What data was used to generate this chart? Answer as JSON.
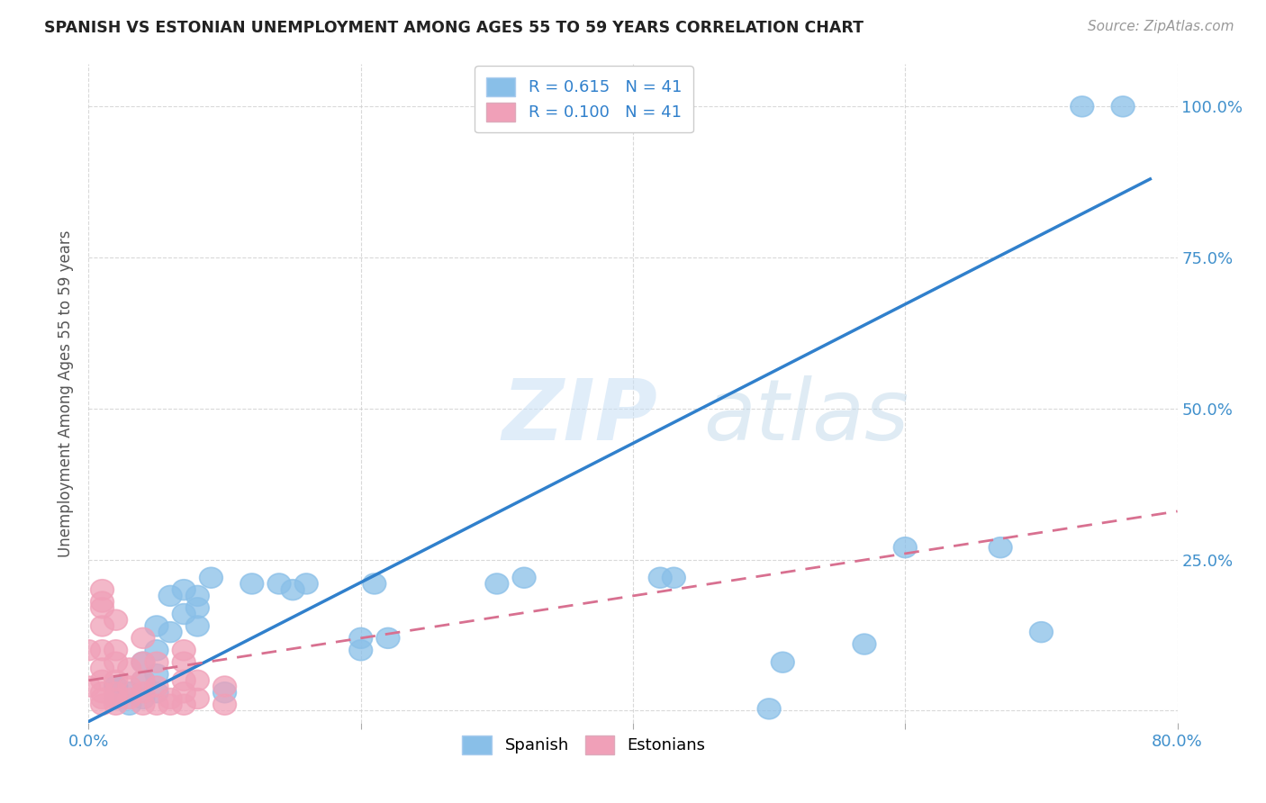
{
  "title": "SPANISH VS ESTONIAN UNEMPLOYMENT AMONG AGES 55 TO 59 YEARS CORRELATION CHART",
  "source": "Source: ZipAtlas.com",
  "ylabel": "Unemployment Among Ages 55 to 59 years",
  "xlim": [
    0.0,
    0.8
  ],
  "ylim": [
    -0.02,
    1.07
  ],
  "x_ticks": [
    0.0,
    0.2,
    0.4,
    0.6,
    0.8
  ],
  "y_ticks": [
    0.0,
    0.25,
    0.5,
    0.75,
    1.0
  ],
  "spanish_R": 0.615,
  "estonian_R": 0.1,
  "N": 41,
  "spanish_color": "#89bfe8",
  "estonian_color": "#f0a0b8",
  "spanish_line_color": "#3080cc",
  "estonian_line_color": "#d87090",
  "watermark_zip": "ZIP",
  "watermark_atlas": "atlas",
  "background_color": "#ffffff",
  "grid_color": "#d0d0d0",
  "spanish_x": [
    0.73,
    0.76,
    0.02,
    0.08,
    0.02,
    0.05,
    0.06,
    0.07,
    0.08,
    0.09,
    0.1,
    0.12,
    0.14,
    0.15,
    0.16,
    0.2,
    0.2,
    0.21,
    0.22,
    0.3,
    0.32,
    0.42,
    0.43,
    0.5,
    0.51,
    0.57,
    0.6,
    0.67,
    0.7,
    0.03,
    0.04,
    0.04,
    0.05,
    0.05,
    0.06,
    0.07,
    0.02,
    0.03,
    0.04,
    0.05,
    0.08
  ],
  "spanish_y": [
    1.0,
    1.0,
    0.04,
    0.19,
    0.02,
    0.03,
    0.13,
    0.16,
    0.14,
    0.22,
    0.03,
    0.21,
    0.21,
    0.2,
    0.21,
    0.1,
    0.12,
    0.21,
    0.12,
    0.21,
    0.22,
    0.22,
    0.22,
    0.003,
    0.08,
    0.11,
    0.27,
    0.27,
    0.13,
    0.01,
    0.02,
    0.05,
    0.06,
    0.1,
    0.19,
    0.2,
    0.04,
    0.03,
    0.08,
    0.14,
    0.17
  ],
  "estonian_x": [
    0.0,
    0.0,
    0.01,
    0.01,
    0.01,
    0.01,
    0.01,
    0.01,
    0.01,
    0.01,
    0.01,
    0.01,
    0.02,
    0.02,
    0.02,
    0.02,
    0.02,
    0.02,
    0.02,
    0.03,
    0.03,
    0.03,
    0.04,
    0.04,
    0.04,
    0.04,
    0.04,
    0.05,
    0.05,
    0.05,
    0.06,
    0.06,
    0.07,
    0.07,
    0.07,
    0.07,
    0.07,
    0.08,
    0.08,
    0.1,
    0.1
  ],
  "estonian_y": [
    0.04,
    0.1,
    0.01,
    0.02,
    0.03,
    0.05,
    0.07,
    0.1,
    0.14,
    0.17,
    0.2,
    0.18,
    0.01,
    0.02,
    0.03,
    0.05,
    0.08,
    0.1,
    0.15,
    0.02,
    0.04,
    0.07,
    0.01,
    0.03,
    0.05,
    0.08,
    0.12,
    0.01,
    0.04,
    0.08,
    0.01,
    0.02,
    0.01,
    0.03,
    0.05,
    0.08,
    0.1,
    0.02,
    0.05,
    0.01,
    0.04
  ],
  "sp_line_x0": 0.0,
  "sp_line_y0": -0.018,
  "sp_line_x1": 0.78,
  "sp_line_y1": 0.88,
  "et_line_x0": 0.0,
  "et_line_y0": 0.05,
  "et_line_x1": 0.8,
  "et_line_y1": 0.33
}
